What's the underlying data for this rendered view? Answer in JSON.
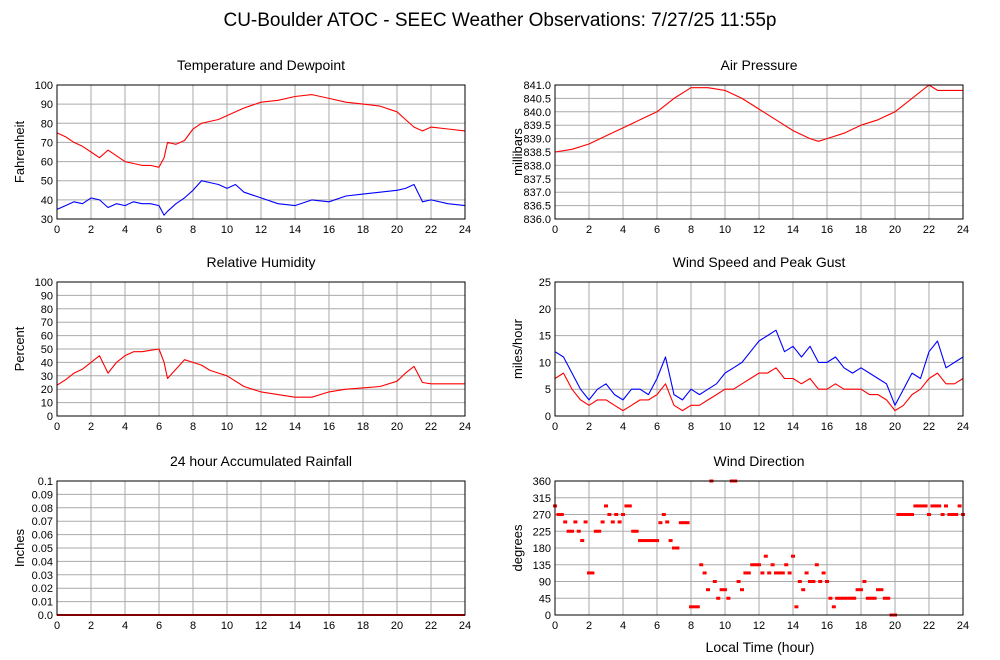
{
  "page": {
    "title": "CU-Boulder ATOC - SEEC Weather Observations: 7/27/25 11:55p",
    "x_axis_label": "Local Time (hour)"
  },
  "chart_data": [
    {
      "id": "temp",
      "type": "line",
      "title": "Temperature and Dewpoint",
      "ylabel": "Fahrenheit",
      "xlim": [
        0,
        24
      ],
      "ylim": [
        30,
        100
      ],
      "xticks": [
        0,
        2,
        4,
        6,
        8,
        10,
        12,
        14,
        16,
        18,
        20,
        22,
        24
      ],
      "yticks": [
        30,
        40,
        50,
        60,
        70,
        80,
        90,
        100
      ],
      "ytick_labels": [
        "30",
        "40",
        "50",
        "60",
        "70",
        "80",
        "90",
        "100"
      ],
      "grid": true,
      "series": [
        {
          "color": "#ff0000",
          "x": [
            0,
            0.5,
            1,
            1.5,
            2,
            2.5,
            3,
            3.5,
            4,
            4.5,
            5,
            5.5,
            6,
            6.3,
            6.5,
            7,
            7.5,
            8,
            8.5,
            9,
            9.5,
            10,
            11,
            12,
            13,
            14,
            15,
            15.5,
            16,
            17,
            18,
            19,
            20,
            20.5,
            21,
            21.5,
            22,
            23,
            24
          ],
          "y": [
            75,
            73,
            70,
            68,
            65,
            62,
            66,
            63,
            60,
            59,
            58,
            58,
            57,
            62,
            70,
            69,
            71,
            77,
            80,
            81,
            82,
            84,
            88,
            91,
            92,
            94,
            95,
            94,
            93,
            91,
            90,
            89,
            86,
            82,
            78,
            76,
            78,
            77,
            76
          ]
        },
        {
          "color": "#0000ff",
          "x": [
            0,
            0.5,
            1,
            1.5,
            2,
            2.5,
            3,
            3.5,
            4,
            4.5,
            5,
            5.5,
            6,
            6.3,
            6.5,
            7,
            7.5,
            8,
            8.5,
            9,
            9.5,
            10,
            10.5,
            11,
            12,
            13,
            14,
            15,
            16,
            17,
            18,
            19,
            20,
            20.5,
            21,
            21.5,
            22,
            23,
            24
          ],
          "y": [
            35,
            37,
            39,
            38,
            41,
            40,
            36,
            38,
            37,
            39,
            38,
            38,
            37,
            32,
            34,
            38,
            41,
            45,
            50,
            49,
            48,
            46,
            48,
            44,
            41,
            38,
            37,
            40,
            39,
            42,
            43,
            44,
            45,
            46,
            48,
            39,
            40,
            38,
            37
          ]
        }
      ]
    },
    {
      "id": "pressure",
      "type": "line",
      "title": "Air Pressure",
      "ylabel": "millibars",
      "xlim": [
        0,
        24
      ],
      "ylim": [
        836.0,
        841.0
      ],
      "xticks": [
        0,
        2,
        4,
        6,
        8,
        10,
        12,
        14,
        16,
        18,
        20,
        22,
        24
      ],
      "yticks": [
        836.0,
        836.5,
        837.0,
        837.5,
        838.0,
        838.5,
        839.0,
        839.5,
        840.0,
        840.5,
        841.0
      ],
      "ytick_labels": [
        "836.0",
        "836.5",
        "837.0",
        "837.5",
        "838.0",
        "838.5",
        "839.0",
        "839.5",
        "840.0",
        "840.5",
        "841.0"
      ],
      "grid": true,
      "series": [
        {
          "color": "#ff0000",
          "x": [
            0,
            1,
            2,
            3,
            4,
            5,
            6,
            7,
            8,
            9,
            10,
            11,
            12,
            13,
            14,
            15,
            15.5,
            16,
            17,
            18,
            19,
            20,
            21,
            22,
            22.5,
            23,
            24
          ],
          "y": [
            838.5,
            838.6,
            838.8,
            839.1,
            839.4,
            839.7,
            840.0,
            840.5,
            840.9,
            840.9,
            840.8,
            840.5,
            840.1,
            839.7,
            839.3,
            839.0,
            838.9,
            839.0,
            839.2,
            839.5,
            839.7,
            840.0,
            840.5,
            841.0,
            840.8,
            840.8,
            840.8
          ]
        }
      ]
    },
    {
      "id": "humidity",
      "type": "line",
      "title": "Relative Humidity",
      "ylabel": "Percent",
      "xlim": [
        0,
        24
      ],
      "ylim": [
        0,
        100
      ],
      "xticks": [
        0,
        2,
        4,
        6,
        8,
        10,
        12,
        14,
        16,
        18,
        20,
        22,
        24
      ],
      "yticks": [
        0,
        10,
        20,
        30,
        40,
        50,
        60,
        70,
        80,
        90,
        100
      ],
      "ytick_labels": [
        "0",
        "10",
        "20",
        "30",
        "40",
        "50",
        "60",
        "70",
        "80",
        "90",
        "100"
      ],
      "grid": true,
      "series": [
        {
          "color": "#ff0000",
          "x": [
            0,
            0.5,
            1,
            1.5,
            2,
            2.5,
            3,
            3.5,
            4,
            4.5,
            5,
            5.5,
            6,
            6.3,
            6.5,
            7,
            7.5,
            8,
            8.5,
            9,
            9.5,
            10,
            11,
            12,
            13,
            14,
            15,
            16,
            17,
            18,
            19,
            20,
            20.5,
            21,
            21.5,
            22,
            23,
            24
          ],
          "y": [
            23,
            27,
            32,
            35,
            40,
            45,
            32,
            40,
            45,
            48,
            48,
            49,
            50,
            40,
            28,
            35,
            42,
            40,
            38,
            34,
            32,
            30,
            22,
            18,
            16,
            14,
            14,
            18,
            20,
            21,
            22,
            26,
            32,
            37,
            25,
            24,
            24,
            24
          ]
        }
      ]
    },
    {
      "id": "wind",
      "type": "line",
      "title": "Wind Speed and Peak Gust",
      "ylabel": "miles/hour",
      "xlim": [
        0,
        24
      ],
      "ylim": [
        0,
        25
      ],
      "xticks": [
        0,
        2,
        4,
        6,
        8,
        10,
        12,
        14,
        16,
        18,
        20,
        22,
        24
      ],
      "yticks": [
        0,
        5,
        10,
        15,
        20,
        25
      ],
      "ytick_labels": [
        "0",
        "5",
        "10",
        "15",
        "20",
        "25"
      ],
      "grid": true,
      "series": [
        {
          "color": "#0000ff",
          "x": [
            0,
            0.5,
            1,
            1.5,
            2,
            2.5,
            3,
            3.5,
            4,
            4.5,
            5,
            5.5,
            6,
            6.5,
            7,
            7.5,
            8,
            8.5,
            9,
            9.5,
            10,
            10.5,
            11,
            11.5,
            12,
            12.5,
            13,
            13.5,
            14,
            14.5,
            15,
            15.5,
            16,
            16.5,
            17,
            17.5,
            18,
            18.5,
            19,
            19.5,
            20,
            20.5,
            21,
            21.5,
            22,
            22.5,
            23,
            23.5,
            24
          ],
          "y": [
            12,
            11,
            8,
            5,
            3,
            5,
            6,
            4,
            3,
            5,
            5,
            4,
            7,
            11,
            4,
            3,
            5,
            4,
            5,
            6,
            8,
            9,
            10,
            12,
            14,
            15,
            16,
            12,
            13,
            11,
            13,
            10,
            10,
            11,
            9,
            8,
            9,
            8,
            7,
            6,
            2,
            5,
            8,
            7,
            12,
            14,
            9,
            10,
            11
          ]
        },
        {
          "color": "#ff0000",
          "x": [
            0,
            0.5,
            1,
            1.5,
            2,
            2.5,
            3,
            3.5,
            4,
            4.5,
            5,
            5.5,
            6,
            6.5,
            7,
            7.5,
            8,
            8.5,
            9,
            9.5,
            10,
            10.5,
            11,
            11.5,
            12,
            12.5,
            13,
            13.5,
            14,
            14.5,
            15,
            15.5,
            16,
            16.5,
            17,
            17.5,
            18,
            18.5,
            19,
            19.5,
            20,
            20.5,
            21,
            21.5,
            22,
            22.5,
            23,
            23.5,
            24
          ],
          "y": [
            7,
            8,
            5,
            3,
            2,
            3,
            3,
            2,
            1,
            2,
            3,
            3,
            4,
            6,
            2,
            1,
            2,
            2,
            3,
            4,
            5,
            5,
            6,
            7,
            8,
            8,
            9,
            7,
            7,
            6,
            7,
            5,
            5,
            6,
            5,
            5,
            5,
            4,
            4,
            3,
            1,
            2,
            4,
            5,
            7,
            8,
            6,
            6,
            7
          ]
        }
      ]
    },
    {
      "id": "rain",
      "type": "line",
      "title": "24 hour Accumulated Rainfall",
      "ylabel": "Inches",
      "xlim": [
        0,
        24
      ],
      "ylim": [
        0,
        0.1
      ],
      "xticks": [
        0,
        2,
        4,
        6,
        8,
        10,
        12,
        14,
        16,
        18,
        20,
        22,
        24
      ],
      "yticks": [
        0,
        0.01,
        0.02,
        0.03,
        0.04,
        0.05,
        0.06,
        0.07,
        0.08,
        0.09,
        0.1
      ],
      "ytick_labels": [
        "0.0",
        "0.01",
        "0.02",
        "0.03",
        "0.04",
        "0.05",
        "0.06",
        "0.07",
        "0.08",
        "0.09",
        "0.1"
      ],
      "grid": true,
      "series": [
        {
          "color": "#ff0000",
          "x": [
            0,
            24
          ],
          "y": [
            0,
            0
          ]
        }
      ]
    },
    {
      "id": "direction",
      "type": "scatter",
      "title": "Wind Direction",
      "ylabel": "degrees",
      "xlim": [
        0,
        24
      ],
      "ylim": [
        0,
        360
      ],
      "xticks": [
        0,
        2,
        4,
        6,
        8,
        10,
        12,
        14,
        16,
        18,
        20,
        22,
        24
      ],
      "yticks": [
        0,
        45,
        90,
        135,
        180,
        225,
        270,
        315,
        360
      ],
      "ytick_labels": [
        "0",
        "45",
        "90",
        "135",
        "180",
        "225",
        "270",
        "315",
        "360"
      ],
      "grid": true,
      "series": [
        {
          "color": "#ff0000",
          "x": [
            0.0,
            0.2,
            0.4,
            0.6,
            0.8,
            1.0,
            1.2,
            1.4,
            1.6,
            1.8,
            2.0,
            2.2,
            2.4,
            2.6,
            2.8,
            3.0,
            3.2,
            3.4,
            3.6,
            3.8,
            4.0,
            4.2,
            4.4,
            4.6,
            4.8,
            5.0,
            5.2,
            5.4,
            5.6,
            5.8,
            6.0,
            6.2,
            6.4,
            6.6,
            6.8,
            7.0,
            7.2,
            7.4,
            7.6,
            7.8,
            8.0,
            8.2,
            8.4,
            8.6,
            8.8,
            9.0,
            9.2,
            9.4,
            9.6,
            9.8,
            10.0,
            10.2,
            10.4,
            10.6,
            10.8,
            11.0,
            11.2,
            11.4,
            11.6,
            11.8,
            12.0,
            12.2,
            12.4,
            12.6,
            12.8,
            13.0,
            13.2,
            13.4,
            13.6,
            13.8,
            14.0,
            14.2,
            14.4,
            14.6,
            14.8,
            15.0,
            15.2,
            15.4,
            15.6,
            15.8,
            16.0,
            16.2,
            16.4,
            16.6,
            16.8,
            17.0,
            17.2,
            17.4,
            17.6,
            17.8,
            18.0,
            18.2,
            18.4,
            18.6,
            18.8,
            19.0,
            19.2,
            19.4,
            19.6,
            19.8,
            20.0,
            20.2,
            20.4,
            20.6,
            20.8,
            21.0,
            21.2,
            21.4,
            21.6,
            21.8,
            22.0,
            22.2,
            22.4,
            22.6,
            22.8,
            23.0,
            23.2,
            23.4,
            23.6,
            23.8,
            24.0
          ],
          "y": [
            293,
            270,
            270,
            250,
            225,
            225,
            250,
            225,
            200,
            250,
            113,
            113,
            225,
            225,
            250,
            293,
            270,
            250,
            270,
            250,
            270,
            293,
            293,
            225,
            225,
            200,
            200,
            200,
            200,
            200,
            200,
            248,
            270,
            250,
            200,
            180,
            180,
            248,
            248,
            248,
            22,
            22,
            22,
            135,
            113,
            68,
            360,
            90,
            45,
            68,
            68,
            45,
            360,
            360,
            90,
            68,
            113,
            113,
            135,
            135,
            135,
            113,
            158,
            113,
            135,
            113,
            113,
            113,
            135,
            113,
            158,
            22,
            90,
            68,
            113,
            90,
            90,
            135,
            90,
            113,
            90,
            45,
            22,
            45,
            45,
            45,
            45,
            45,
            45,
            68,
            68,
            90,
            45,
            45,
            45,
            68,
            68,
            45,
            45,
            0,
            0,
            270,
            270,
            270,
            270,
            270,
            293,
            293,
            293,
            293,
            270,
            293,
            293,
            293,
            270,
            293,
            270,
            270,
            270,
            293,
            270
          ]
        }
      ]
    }
  ]
}
